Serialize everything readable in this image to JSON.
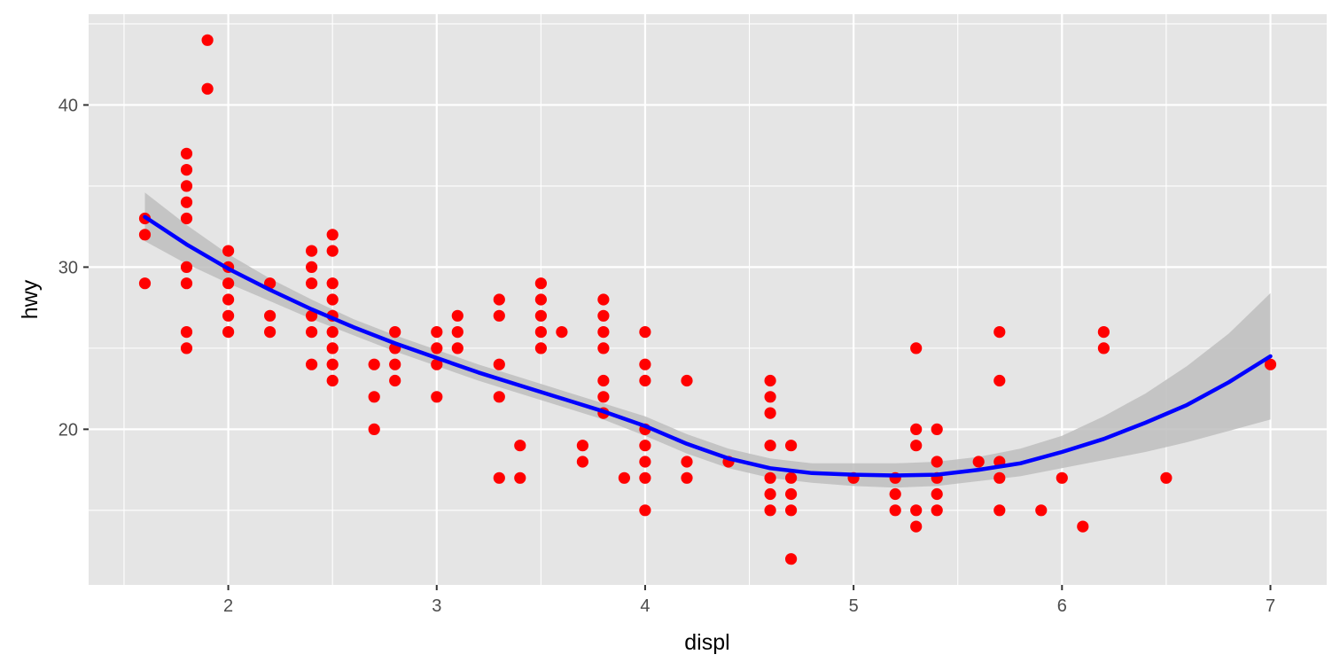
{
  "chart_data": {
    "type": "scatter",
    "xlabel": "displ",
    "ylabel": "hwy",
    "xlim": [
      1.33,
      7.27
    ],
    "ylim": [
      10.4,
      45.6
    ],
    "x_ticks": [
      2,
      3,
      4,
      5,
      6,
      7
    ],
    "x_tick_labels": [
      "2",
      "3",
      "4",
      "5",
      "6",
      "7"
    ],
    "y_ticks": [
      20,
      30,
      40
    ],
    "y_tick_labels": [
      "20",
      "30",
      "40"
    ],
    "grid": true,
    "legend": "none",
    "colors": {
      "panel": "#e5e5e5",
      "grid": "#ffffff",
      "points": "#ff0000",
      "smooth_line": "#0000ff",
      "confidence_band": "#bebebe"
    },
    "points": [
      [
        1.6,
        33
      ],
      [
        1.6,
        32
      ],
      [
        1.6,
        29
      ],
      [
        1.8,
        37
      ],
      [
        1.8,
        36
      ],
      [
        1.8,
        35
      ],
      [
        1.8,
        34
      ],
      [
        1.8,
        33
      ],
      [
        1.8,
        30
      ],
      [
        1.8,
        29
      ],
      [
        1.8,
        26
      ],
      [
        1.8,
        25
      ],
      [
        1.9,
        44
      ],
      [
        1.9,
        41
      ],
      [
        2.0,
        31
      ],
      [
        2.0,
        30
      ],
      [
        2.0,
        29
      ],
      [
        2.0,
        28
      ],
      [
        2.0,
        27
      ],
      [
        2.0,
        26
      ],
      [
        2.2,
        29
      ],
      [
        2.2,
        27
      ],
      [
        2.2,
        26
      ],
      [
        2.4,
        31
      ],
      [
        2.4,
        30
      ],
      [
        2.4,
        29
      ],
      [
        2.4,
        27
      ],
      [
        2.4,
        26
      ],
      [
        2.4,
        24
      ],
      [
        2.5,
        32
      ],
      [
        2.5,
        31
      ],
      [
        2.5,
        29
      ],
      [
        2.5,
        28
      ],
      [
        2.5,
        27
      ],
      [
        2.5,
        26
      ],
      [
        2.5,
        25
      ],
      [
        2.5,
        24
      ],
      [
        2.5,
        23
      ],
      [
        2.7,
        24
      ],
      [
        2.7,
        22
      ],
      [
        2.7,
        20
      ],
      [
        2.8,
        26
      ],
      [
        2.8,
        25
      ],
      [
        2.8,
        24
      ],
      [
        2.8,
        23
      ],
      [
        3.0,
        26
      ],
      [
        3.0,
        25
      ],
      [
        3.0,
        24
      ],
      [
        3.0,
        22
      ],
      [
        3.1,
        27
      ],
      [
        3.1,
        26
      ],
      [
        3.1,
        25
      ],
      [
        3.3,
        28
      ],
      [
        3.3,
        27
      ],
      [
        3.3,
        24
      ],
      [
        3.3,
        22
      ],
      [
        3.3,
        17
      ],
      [
        3.4,
        19
      ],
      [
        3.4,
        17
      ],
      [
        3.5,
        29
      ],
      [
        3.5,
        28
      ],
      [
        3.5,
        27
      ],
      [
        3.5,
        26
      ],
      [
        3.5,
        25
      ],
      [
        3.6,
        26
      ],
      [
        3.7,
        19
      ],
      [
        3.7,
        18
      ],
      [
        3.8,
        28
      ],
      [
        3.8,
        27
      ],
      [
        3.8,
        26
      ],
      [
        3.8,
        25
      ],
      [
        3.8,
        23
      ],
      [
        3.8,
        22
      ],
      [
        3.8,
        21
      ],
      [
        3.9,
        17
      ],
      [
        4.0,
        26
      ],
      [
        4.0,
        24
      ],
      [
        4.0,
        23
      ],
      [
        4.0,
        20
      ],
      [
        4.0,
        19
      ],
      [
        4.0,
        18
      ],
      [
        4.0,
        17
      ],
      [
        4.0,
        15
      ],
      [
        4.2,
        23
      ],
      [
        4.2,
        18
      ],
      [
        4.2,
        17
      ],
      [
        4.4,
        18
      ],
      [
        4.6,
        23
      ],
      [
        4.6,
        22
      ],
      [
        4.6,
        21
      ],
      [
        4.6,
        19
      ],
      [
        4.6,
        17
      ],
      [
        4.6,
        16
      ],
      [
        4.6,
        15
      ],
      [
        4.7,
        19
      ],
      [
        4.7,
        17
      ],
      [
        4.7,
        16
      ],
      [
        4.7,
        15
      ],
      [
        4.7,
        12
      ],
      [
        5.0,
        17
      ],
      [
        5.2,
        17
      ],
      [
        5.2,
        16
      ],
      [
        5.2,
        15
      ],
      [
        5.3,
        25
      ],
      [
        5.3,
        20
      ],
      [
        5.3,
        19
      ],
      [
        5.3,
        15
      ],
      [
        5.3,
        14
      ],
      [
        5.4,
        20
      ],
      [
        5.4,
        18
      ],
      [
        5.4,
        17
      ],
      [
        5.4,
        16
      ],
      [
        5.4,
        15
      ],
      [
        5.6,
        18
      ],
      [
        5.7,
        26
      ],
      [
        5.7,
        23
      ],
      [
        5.7,
        18
      ],
      [
        5.7,
        17
      ],
      [
        5.7,
        15
      ],
      [
        5.9,
        15
      ],
      [
        6.0,
        17
      ],
      [
        6.1,
        14
      ],
      [
        6.2,
        26
      ],
      [
        6.2,
        25
      ],
      [
        6.5,
        17
      ],
      [
        7.0,
        24
      ]
    ],
    "smooth": {
      "method": "loess",
      "x": [
        1.6,
        1.8,
        2.0,
        2.2,
        2.4,
        2.6,
        2.8,
        3.0,
        3.2,
        3.4,
        3.6,
        3.8,
        4.0,
        4.2,
        4.4,
        4.6,
        4.8,
        5.0,
        5.2,
        5.4,
        5.6,
        5.8,
        6.0,
        6.2,
        6.4,
        6.6,
        6.8,
        7.0
      ],
      "y": [
        33.1,
        31.4,
        29.9,
        28.6,
        27.4,
        26.3,
        25.3,
        24.4,
        23.5,
        22.7,
        21.9,
        21.1,
        20.2,
        19.1,
        18.2,
        17.6,
        17.3,
        17.2,
        17.15,
        17.2,
        17.5,
        17.9,
        18.6,
        19.4,
        20.4,
        21.5,
        22.9,
        24.5
      ],
      "lower": [
        31.6,
        30.2,
        29.0,
        27.9,
        26.8,
        25.8,
        24.8,
        23.9,
        23.0,
        22.2,
        21.4,
        20.6,
        19.6,
        18.5,
        17.6,
        17.0,
        16.7,
        16.5,
        16.4,
        16.5,
        16.8,
        17.1,
        17.6,
        18.1,
        18.6,
        19.2,
        19.9,
        20.6
      ],
      "upper": [
        34.6,
        32.6,
        30.8,
        29.3,
        28.0,
        26.8,
        25.8,
        24.9,
        24.0,
        23.2,
        22.4,
        21.6,
        20.8,
        19.7,
        18.8,
        18.2,
        17.9,
        17.9,
        17.9,
        18.0,
        18.3,
        18.8,
        19.6,
        20.8,
        22.2,
        23.9,
        25.9,
        28.4
      ]
    }
  }
}
